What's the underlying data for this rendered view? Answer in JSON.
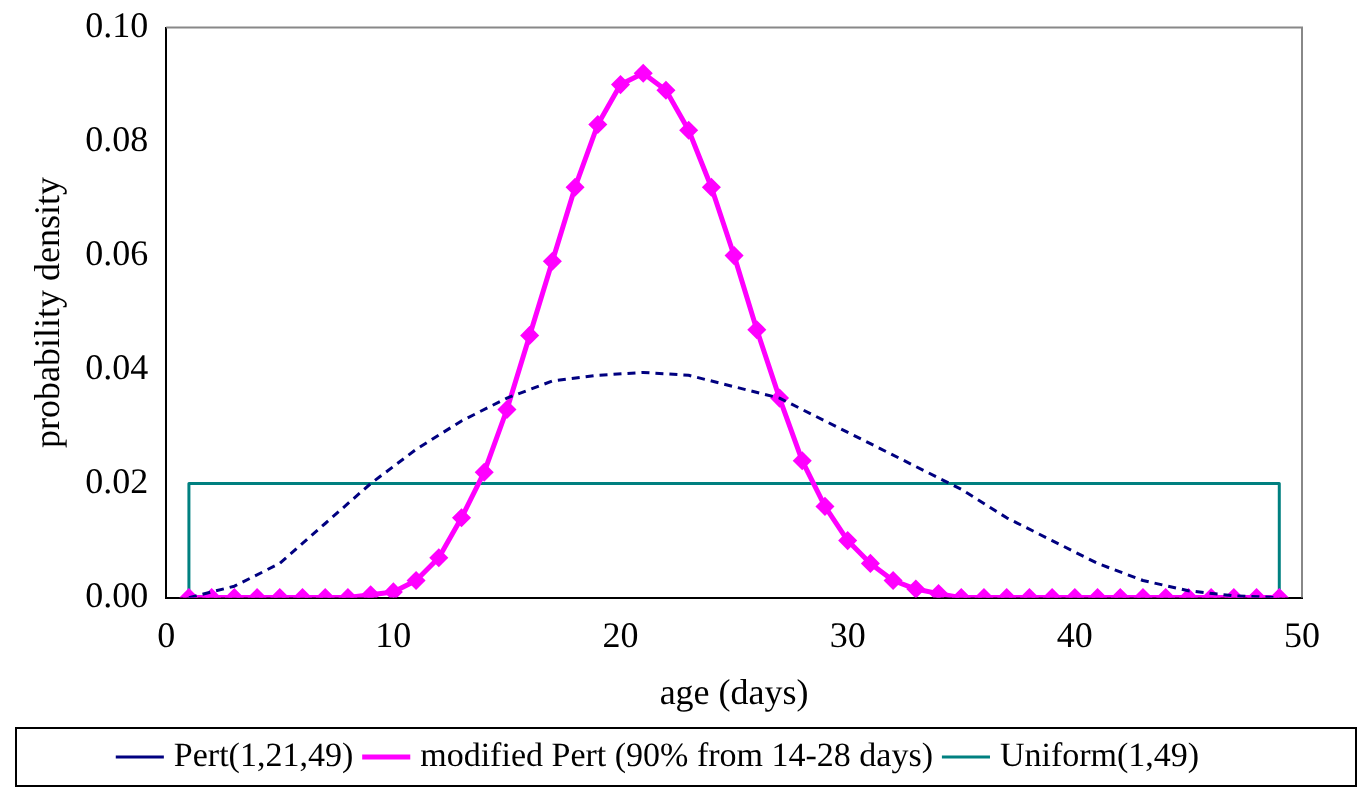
{
  "chart_data": {
    "type": "line",
    "xlabel": "age (days)",
    "ylabel": "probability density",
    "xlim": [
      0,
      50
    ],
    "xticks": [
      0,
      10,
      20,
      30,
      40,
      50
    ],
    "ylim": [
      0,
      0.1
    ],
    "yticks": [
      {
        "value": 0,
        "label": "0.00"
      },
      {
        "value": 0.02,
        "label": "0.02"
      },
      {
        "value": 0.04,
        "label": "0.04"
      },
      {
        "value": 0.06,
        "label": "0.06"
      },
      {
        "value": 0.08,
        "label": "0.08"
      },
      {
        "value": 0.1,
        "label": "0.10"
      }
    ],
    "legend": "bottom",
    "grid": false,
    "series": [
      {
        "name": "Pert(1,21,49)",
        "color": "#000080",
        "line_style": "dashed",
        "marker": "none",
        "x": [
          1,
          3,
          5,
          7,
          9,
          11,
          13,
          15,
          17,
          19,
          21,
          23,
          25,
          27,
          29,
          31,
          33,
          35,
          37,
          39,
          41,
          43,
          45,
          47,
          49
        ],
        "values": [
          0,
          0.002,
          0.006,
          0.013,
          0.02,
          0.026,
          0.031,
          0.035,
          0.038,
          0.039,
          0.0395,
          0.039,
          0.037,
          0.035,
          0.031,
          0.027,
          0.023,
          0.019,
          0.014,
          0.01,
          0.006,
          0.003,
          0.0012,
          0.0003,
          0
        ]
      },
      {
        "name": "modified Pert (90% from 14-28 days)",
        "color": "#ff00ff",
        "line_style": "solid",
        "marker": "diamond",
        "x": [
          1,
          2,
          3,
          4,
          5,
          6,
          7,
          8,
          9,
          10,
          11,
          12,
          13,
          14,
          15,
          16,
          17,
          18,
          19,
          20,
          21,
          22,
          23,
          24,
          25,
          26,
          27,
          28,
          29,
          30,
          31,
          32,
          33,
          34,
          35,
          36,
          37,
          38,
          39,
          40,
          41,
          42,
          43,
          44,
          45,
          46,
          47,
          48,
          49
        ],
        "values": [
          0,
          0,
          0,
          0,
          0,
          0,
          0,
          0,
          0.0005,
          0.001,
          0.003,
          0.007,
          0.014,
          0.022,
          0.033,
          0.046,
          0.059,
          0.072,
          0.083,
          0.09,
          0.092,
          0.089,
          0.082,
          0.072,
          0.06,
          0.047,
          0.035,
          0.024,
          0.016,
          0.01,
          0.006,
          0.003,
          0.0015,
          0.0007,
          0,
          0,
          0,
          0,
          0,
          0,
          0,
          0,
          0,
          0,
          0,
          0,
          0,
          0,
          0
        ]
      },
      {
        "name": "Uniform(1,49)",
        "color": "#008080",
        "line_style": "solid",
        "marker": "none",
        "x": [
          1,
          1,
          49,
          49
        ],
        "values": [
          0,
          0.02,
          0.02,
          0
        ]
      }
    ]
  }
}
